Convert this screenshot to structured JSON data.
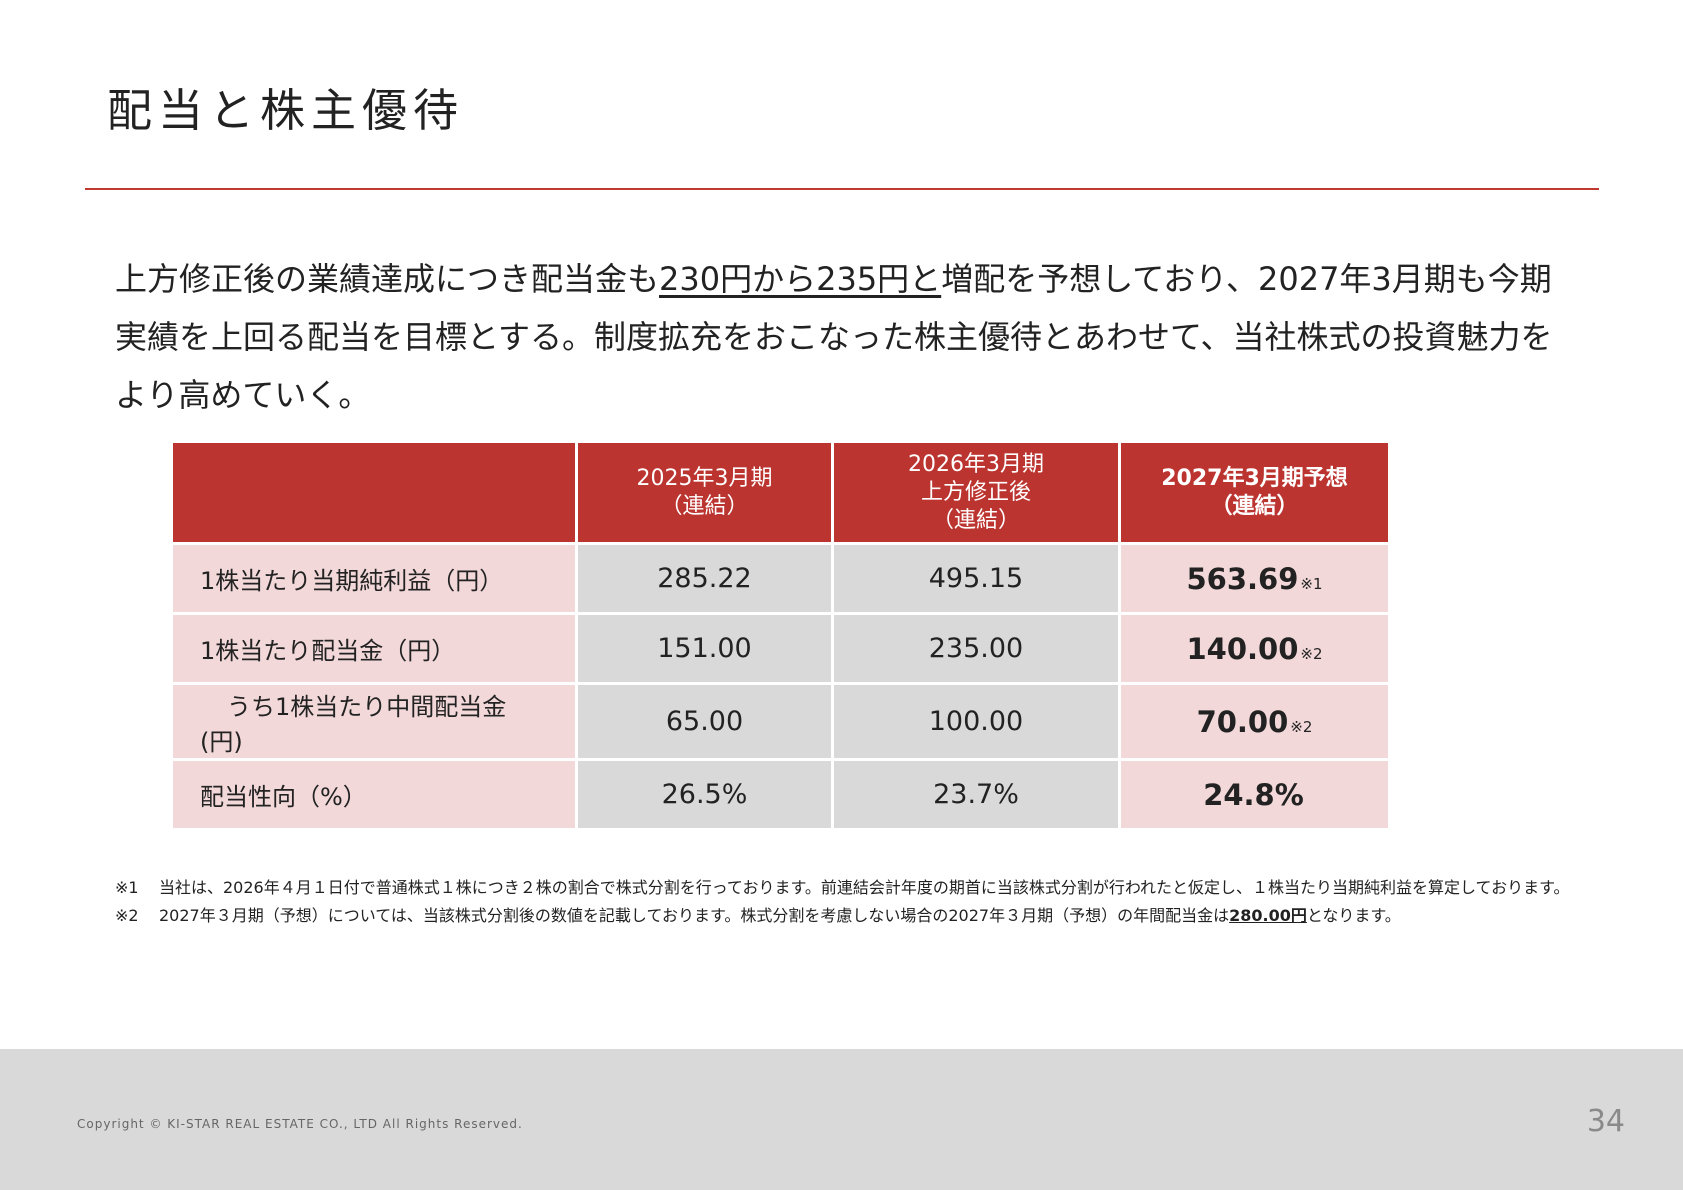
{
  "title": "配当と株主優待",
  "intro": {
    "line1": {
      "a": "上方修正後の業績達成につき配当金も",
      "b": "230円から235円と",
      "c": "増配を予想しており、2027年3月期も今期"
    },
    "line2": "実績を上回る配当を目標とする。制度拡充をおこなった株主優待とあわせて、当社株式の投資魅力を",
    "line3": "より高めていく。"
  },
  "table": {
    "headers": [
      {
        "l1": "",
        "l2": "",
        "l3": ""
      },
      {
        "l1": "2025年3月期",
        "l2": "（連結）",
        "l3": ""
      },
      {
        "l1": "2026年3月期",
        "l2": "上方修正後",
        "l3": "（連結）"
      },
      {
        "l1": "2027年3月期予想",
        "l2": "（連結）",
        "l3": ""
      }
    ],
    "rows": [
      {
        "label": "1株当たり当期純利益（円）",
        "v2025": "285.22",
        "v2026": "495.15",
        "v2027": "563.69",
        "note": "※1"
      },
      {
        "label": "1株当たり配当金（円）",
        "v2025": "151.00",
        "v2026": "235.00",
        "v2027": "140.00",
        "note": "※2"
      },
      {
        "label": "うち1株当たり中間配当金",
        "label2": "(円)",
        "v2025": "65.00",
        "v2026": "100.00",
        "v2027": "70.00",
        "note": "※2"
      },
      {
        "label": "配当性向（%）",
        "v2025": "26.5%",
        "v2026": "23.7%",
        "v2027": "24.8%",
        "note": ""
      }
    ]
  },
  "footnotes": [
    {
      "mark": "※1",
      "text": "当社は、2026年４月１日付で普通株式１株につき２株の割合で株式分割を行っております。前連結会計年度の期首に当該株式分割が行われたと仮定し、１株当たり当期純利益を算定しております。"
    },
    {
      "mark": "※2",
      "text": "2027年３月期（予想）については、当該株式分割後の数値を記載しております。株式分割を考慮しない場合の2027年３月期（予想）の年間配当金は",
      "bold": "280.00円",
      "tail": "となります。"
    }
  ],
  "footer": {
    "copyright": "Copyright © KI-STAR REAL ESTATE CO., LTD All Rights Reserved.",
    "page": "34"
  },
  "colors": {
    "accent": "#bb3430",
    "row_pink": "#f2d8d9",
    "row_gray": "#d9d9d9",
    "footer_bg": "#d9d9d9"
  }
}
